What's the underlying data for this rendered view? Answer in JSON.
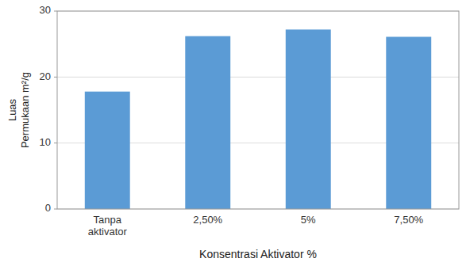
{
  "chart_data": {
    "type": "bar",
    "categories": [
      "Tanpa\naktivator",
      "2,50%",
      "5%",
      "7,50%"
    ],
    "values": [
      17.8,
      26.2,
      27.2,
      26.1
    ],
    "color": "#5B9BD5",
    "xlabel": "Konsentrasi Aktivator %",
    "ylabel": "Luas\nPermukaan m²/g",
    "ylim": [
      0,
      30
    ],
    "yticks": [
      0,
      10,
      20,
      30
    ],
    "grid": true
  }
}
